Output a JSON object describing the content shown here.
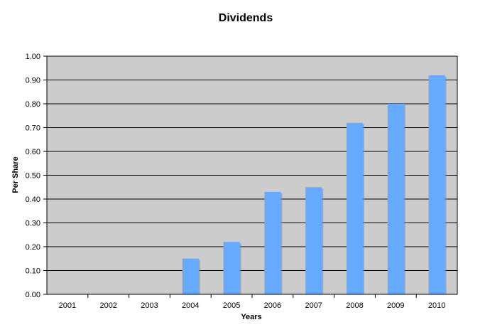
{
  "chart_data": {
    "type": "bar",
    "title": "Dividends",
    "xlabel": "Years",
    "ylabel": "Per Share",
    "categories": [
      "2001",
      "2002",
      "2003",
      "2004",
      "2005",
      "2006",
      "2007",
      "2008",
      "2009",
      "2010"
    ],
    "values": [
      0,
      0,
      0,
      0.15,
      0.22,
      0.43,
      0.45,
      0.72,
      0.8,
      0.92
    ],
    "ylim": [
      0,
      1.0
    ],
    "yticks": [
      "0.00",
      "0.10",
      "0.20",
      "0.30",
      "0.40",
      "0.50",
      "0.60",
      "0.70",
      "0.80",
      "0.90",
      "1.00"
    ],
    "grid": true,
    "legend": "none",
    "colors": {
      "bar": "#66aaff",
      "bar_shadow": "#8c8c8c",
      "plot_background": "#cccccc",
      "gridline": "#000000"
    }
  }
}
